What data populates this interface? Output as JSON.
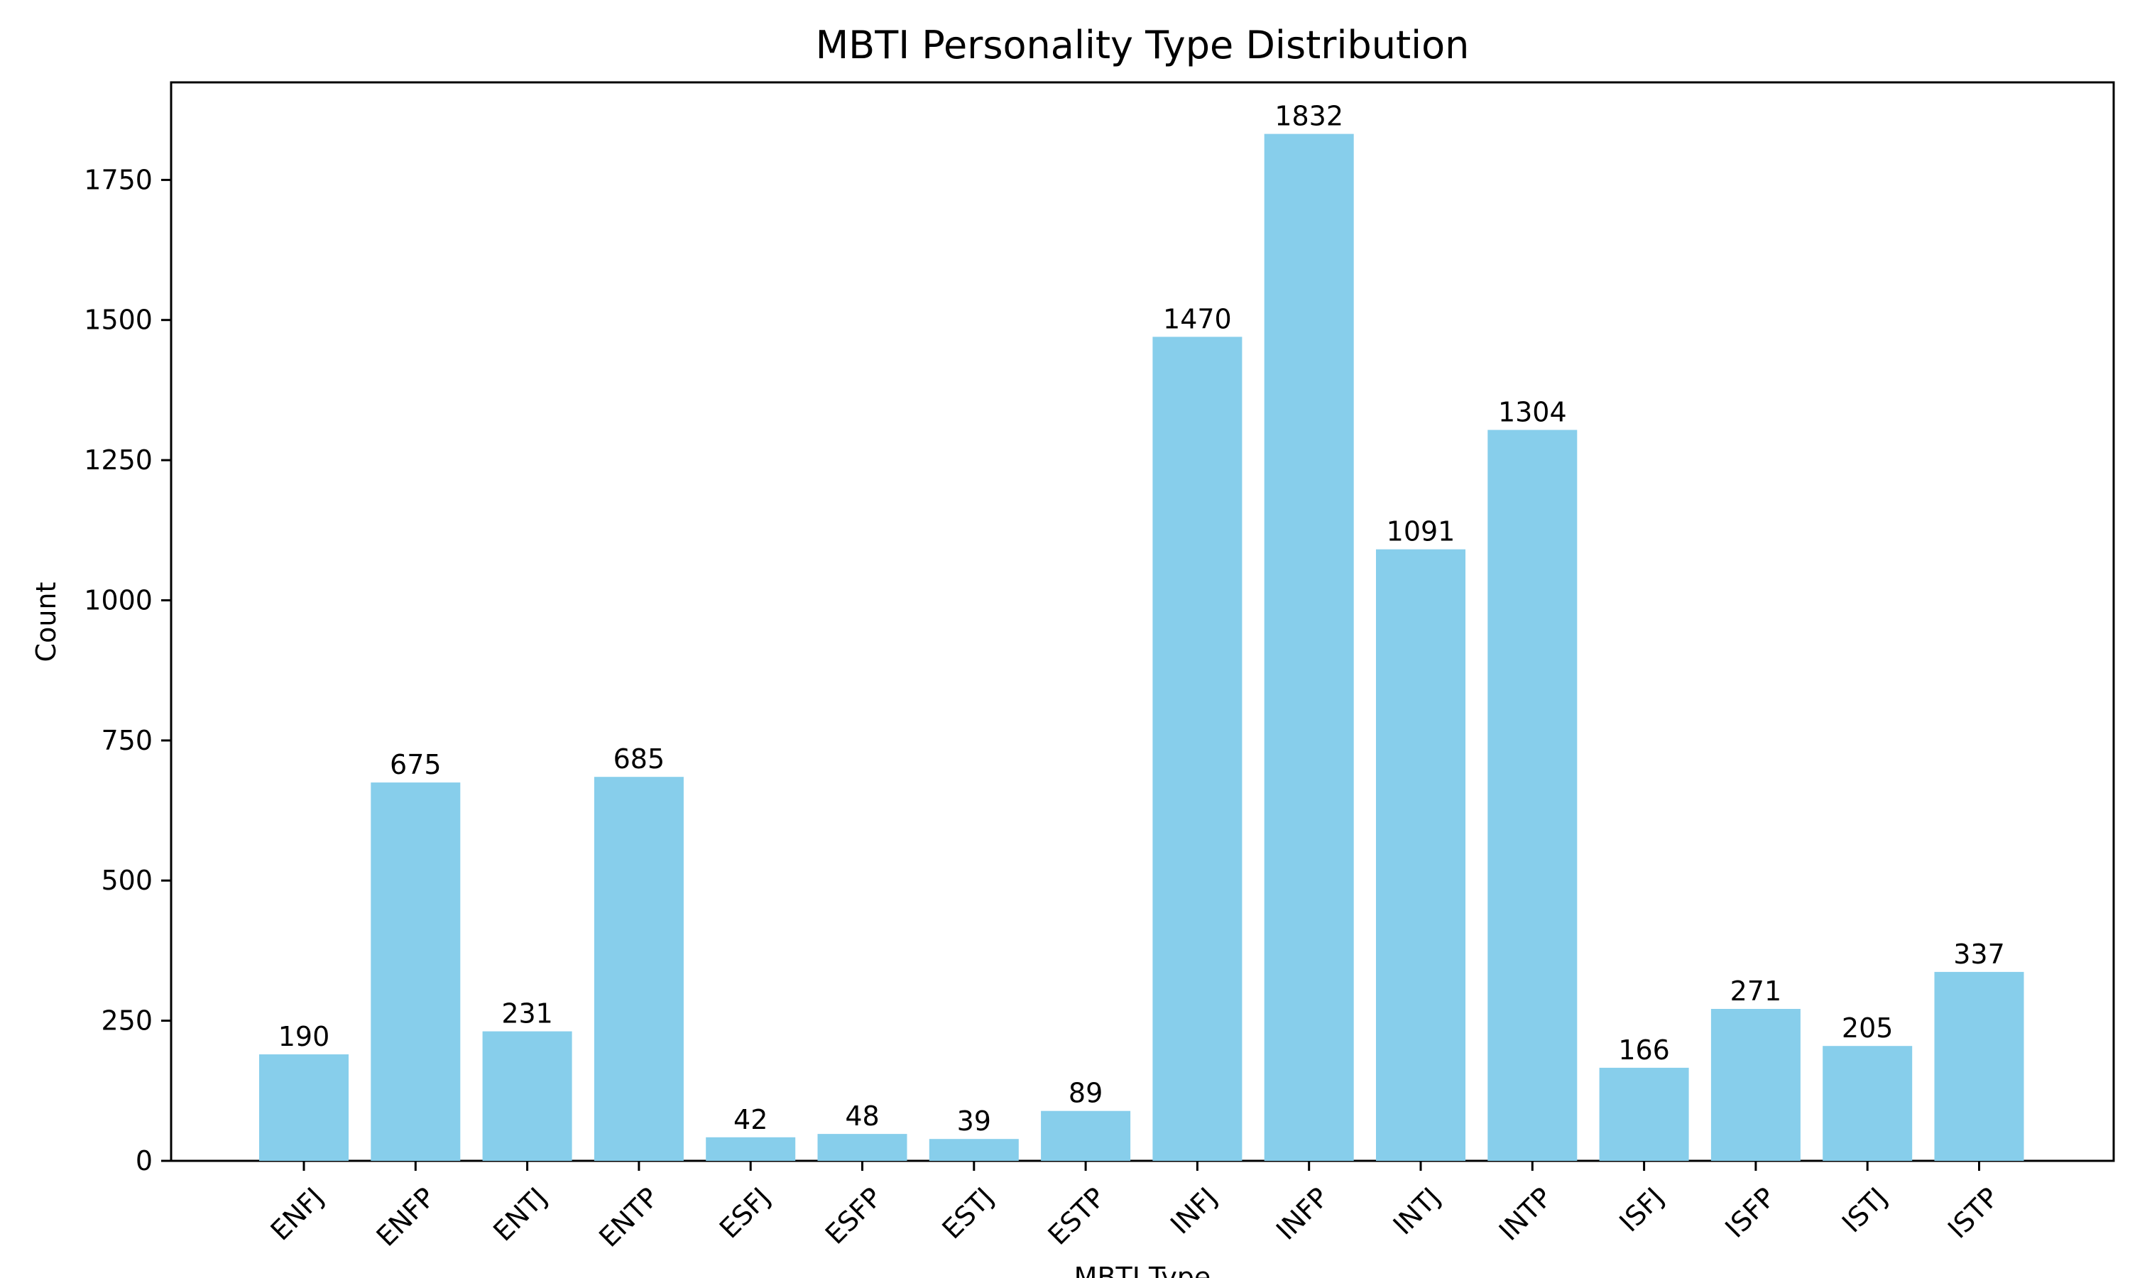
{
  "chart_data": {
    "type": "bar",
    "title": "MBTI Personality Type Distribution",
    "xlabel": "MBTI Type",
    "ylabel": "Count",
    "categories": [
      "ENFJ",
      "ENFP",
      "ENTJ",
      "ENTP",
      "ESFJ",
      "ESFP",
      "ESTJ",
      "ESTP",
      "INFJ",
      "INFP",
      "INTJ",
      "INTP",
      "ISFJ",
      "ISFP",
      "ISTJ",
      "ISTP"
    ],
    "values": [
      190,
      675,
      231,
      685,
      42,
      48,
      39,
      89,
      1470,
      1832,
      1091,
      1304,
      166,
      271,
      205,
      337
    ],
    "ylim": [
      0,
      1924
    ],
    "yticks": [
      0,
      250,
      500,
      750,
      1000,
      1250,
      1500,
      1750
    ],
    "bar_color": "#87CEEB",
    "grid": false,
    "legend": "none"
  }
}
